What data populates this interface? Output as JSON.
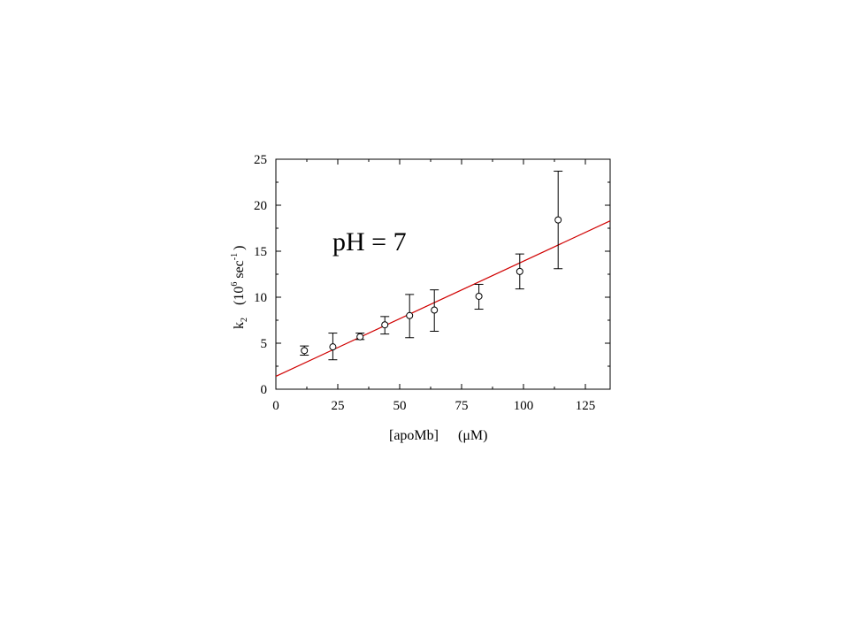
{
  "chart_data": {
    "type": "scatter",
    "annotation": "pH = 7",
    "xlabel": "[apoMb]",
    "xlabel_unit": "(μM)",
    "ylabel": {
      "symbol": "k",
      "subscript": "2",
      "unit_open": "(10",
      "exp1": "6",
      "unit_mid": " sec",
      "exp2": "-1",
      "unit_close": ")"
    },
    "xlim": [
      0,
      135
    ],
    "ylim": [
      0,
      25
    ],
    "xticks": [
      0,
      25,
      50,
      75,
      100,
      125
    ],
    "yticks": [
      0,
      5,
      10,
      15,
      20,
      25
    ],
    "series": [
      {
        "marker": "open-circle",
        "x": [
          11.5,
          23,
          34,
          44,
          54,
          64,
          82,
          98.5,
          114
        ],
        "y": [
          4.2,
          4.6,
          5.7,
          7.0,
          8.0,
          8.6,
          10.1,
          12.8,
          18.4
        ],
        "yerr_low": [
          3.7,
          3.2,
          5.4,
          6.0,
          5.6,
          6.3,
          8.7,
          10.9,
          13.1
        ],
        "yerr_high": [
          4.7,
          6.1,
          6.1,
          7.9,
          10.3,
          10.8,
          11.4,
          14.7,
          23.7
        ]
      }
    ],
    "fit_line": {
      "color": "#d00000",
      "x": [
        0,
        135
      ],
      "y": [
        1.4,
        18.3
      ]
    },
    "colors": {
      "axis": "#000000",
      "marker": "#000000",
      "fit": "#d00000"
    }
  }
}
